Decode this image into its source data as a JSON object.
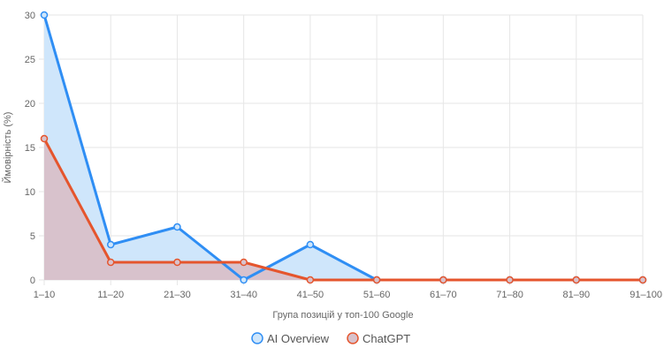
{
  "chart_data": {
    "type": "line",
    "categories": [
      "1–10",
      "11–20",
      "21–30",
      "31–40",
      "41–50",
      "51–60",
      "61–70",
      "71–80",
      "81–90",
      "91–100"
    ],
    "series": [
      {
        "name": "AI Overview",
        "values": [
          30,
          4,
          6,
          0,
          4,
          0,
          0,
          0,
          0,
          0
        ],
        "color": "#2f8ef4",
        "fill": "#cfe6fb"
      },
      {
        "name": "ChatGPT",
        "values": [
          16,
          2,
          2,
          2,
          0,
          0,
          0,
          0,
          0,
          0
        ],
        "color": "#e5552d",
        "fill": "#d8c2cc"
      }
    ],
    "xlabel": "Група позицій у топ-100 Google",
    "ylabel": "Ймовірність (%)",
    "ylim": [
      0,
      30
    ],
    "yticks": [
      0,
      5,
      10,
      15,
      20,
      25,
      30
    ],
    "grid": true,
    "legend": "bottom-center"
  }
}
